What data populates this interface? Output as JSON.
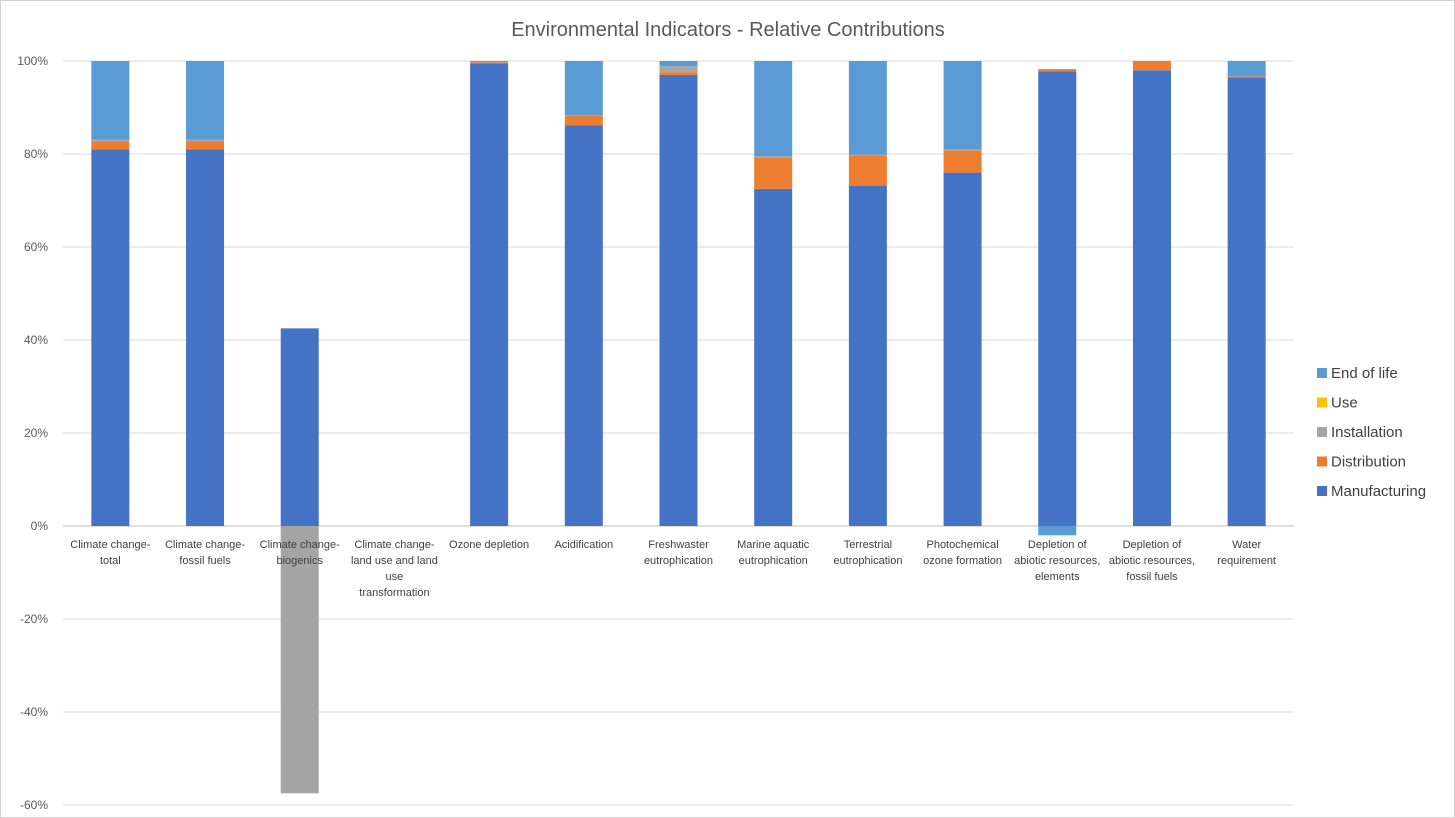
{
  "chart_data": {
    "type": "bar",
    "stacked": true,
    "title": "Environmental Indicators - Relative Contributions",
    "xlabel": "",
    "ylabel": "",
    "ylim": [
      -0.6,
      1.0
    ],
    "y_ticks": [
      1.0,
      0.8,
      0.6,
      0.4,
      0.2,
      0.0,
      -0.2,
      -0.4,
      -0.6
    ],
    "y_tick_labels": [
      "100%",
      "80%",
      "60%",
      "40%",
      "20%",
      "0%",
      "-20%",
      "-40%",
      "-60%"
    ],
    "grid": true,
    "legend_position": "right",
    "categories": [
      [
        "Climate change-",
        "total"
      ],
      [
        "Climate change-",
        "fossil fuels"
      ],
      [
        "Climate change-",
        "biogenics"
      ],
      [
        "Climate change-",
        "land use and land",
        "use",
        "transformation"
      ],
      [
        "Ozone depletion"
      ],
      [
        "Acidification"
      ],
      [
        "Freshwaster",
        "eutrophication"
      ],
      [
        "Marine aquatic",
        "eutrophication"
      ],
      [
        "Terrestrial",
        "eutrophication"
      ],
      [
        "Photochemical",
        "ozone formation"
      ],
      [
        "Depletion of",
        "abiotic resources,",
        "elements"
      ],
      [
        "Depletion of",
        "abiotic resources,",
        "fossil fuels"
      ],
      [
        "Water",
        "requirement"
      ]
    ],
    "series": [
      {
        "name": "Manufacturing",
        "color": "#4472c4",
        "values": [
          0.81,
          0.81,
          0.425,
          0,
          0.995,
          0.862,
          0.97,
          0.725,
          0.732,
          0.76,
          0.978,
          0.98,
          0.965
        ]
      },
      {
        "name": "Distribution",
        "color": "#ed7d31",
        "values": [
          0.017,
          0.017,
          0,
          0,
          0.002,
          0.02,
          0.006,
          0.068,
          0.065,
          0.048,
          0.004,
          0.02,
          0.002
        ]
      },
      {
        "name": "Installation",
        "color": "#a5a5a5",
        "values": [
          0.004,
          0.004,
          -0.575,
          0,
          0.001,
          0.001,
          0.013,
          0.002,
          0.002,
          0.002,
          0.001,
          0,
          0
        ]
      },
      {
        "name": "Use",
        "color": "#ffc000",
        "values": [
          0,
          0,
          0,
          0,
          0,
          0,
          0,
          0,
          0,
          0,
          0,
          0,
          0
        ]
      },
      {
        "name": "End of life",
        "color": "#5b9bd5",
        "values": [
          0.169,
          0.169,
          0,
          0,
          0.002,
          0.117,
          0.011,
          0.205,
          0.201,
          0.19,
          -0.02,
          0,
          0.033
        ]
      }
    ]
  }
}
